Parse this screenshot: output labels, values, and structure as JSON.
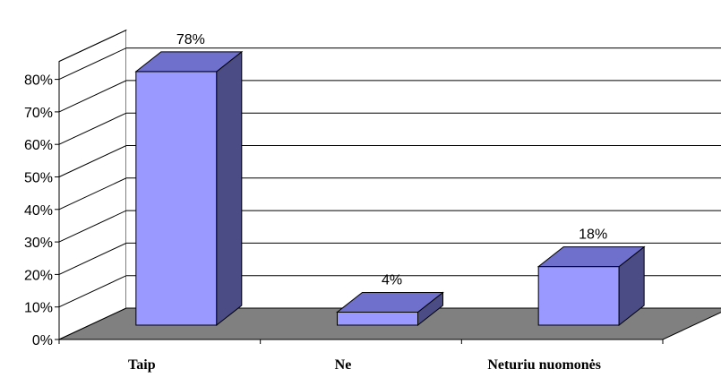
{
  "chart_data": {
    "type": "bar",
    "categories": [
      "Taip",
      "Ne",
      "Neturiu nuomonės"
    ],
    "values": [
      78,
      4,
      18
    ],
    "data_labels": [
      "78%",
      "4%",
      "18%"
    ],
    "y_tick_labels": [
      "0%",
      "10%",
      "20%",
      "30%",
      "40%",
      "50%",
      "60%",
      "70%",
      "80%"
    ],
    "ylim": [
      0,
      80
    ],
    "grid": true,
    "legend": "none",
    "three_d": true,
    "colors": {
      "bar_front": "#9999FF",
      "bar_top": "#6F6FCC",
      "bar_side": "#4B4B85",
      "floor": "#808080",
      "wall": "#FFFFFF",
      "outline": "#000000"
    }
  }
}
